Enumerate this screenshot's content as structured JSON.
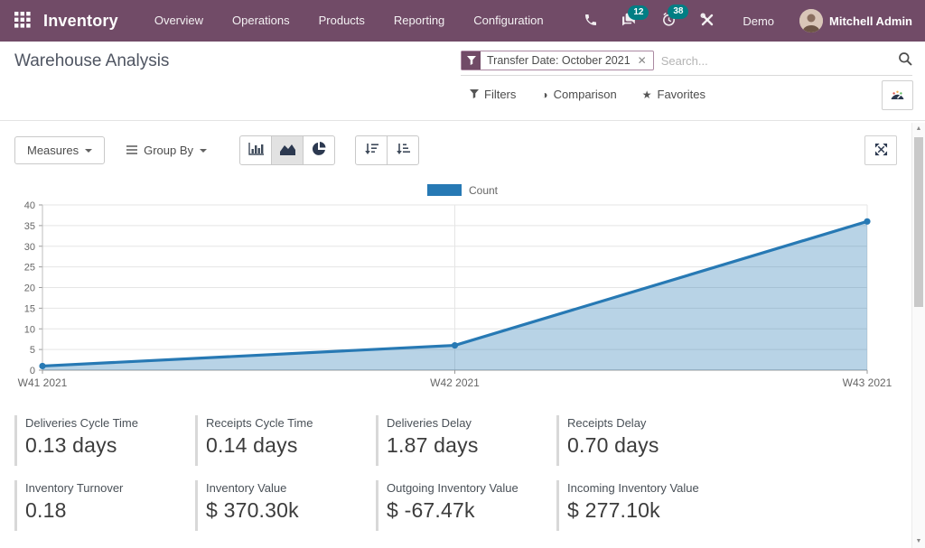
{
  "colors": {
    "brand": "#714B67",
    "badge": "#017E84",
    "chart_line": "#2779B4"
  },
  "navbar": {
    "app_name": "Inventory",
    "menu": [
      "Overview",
      "Operations",
      "Products",
      "Reporting",
      "Configuration"
    ],
    "badge_messages": "12",
    "badge_activities": "38",
    "company": "Demo",
    "user": "Mitchell Admin"
  },
  "control_panel": {
    "title": "Warehouse Analysis",
    "filter_tag": "Transfer Date: October 2021",
    "search_placeholder": "Search...",
    "filters_label": "Filters",
    "comparison_label": "Comparison",
    "favorites_label": "Favorites"
  },
  "toolbar": {
    "measures_label": "Measures",
    "group_by_label": "Group By"
  },
  "chart_data": {
    "type": "area",
    "title": "",
    "x": [
      "W41 2021",
      "W42 2021",
      "W43 2021"
    ],
    "series": [
      {
        "name": "Count",
        "values": [
          1,
          6,
          36
        ]
      }
    ],
    "ylim": [
      0,
      40
    ],
    "yticks": [
      0,
      5,
      10,
      15,
      20,
      25,
      30,
      35,
      40
    ],
    "legend_position": "top",
    "grid": true,
    "line_color": "#2779B4",
    "fill_color": "rgba(39,121,180,0.33)"
  },
  "kpis": [
    {
      "label": "Deliveries Cycle Time",
      "value": "0.13 days"
    },
    {
      "label": "Receipts Cycle Time",
      "value": "0.14 days"
    },
    {
      "label": "Deliveries Delay",
      "value": "1.87 days"
    },
    {
      "label": "Receipts Delay",
      "value": "0.70 days"
    },
    {
      "label": "Inventory Turnover",
      "value": "0.18"
    },
    {
      "label": "Inventory Value",
      "value": "$ 370.30k"
    },
    {
      "label": "Outgoing Inventory Value",
      "value": "$ -67.47k"
    },
    {
      "label": "Incoming Inventory Value",
      "value": "$ 277.10k"
    }
  ]
}
